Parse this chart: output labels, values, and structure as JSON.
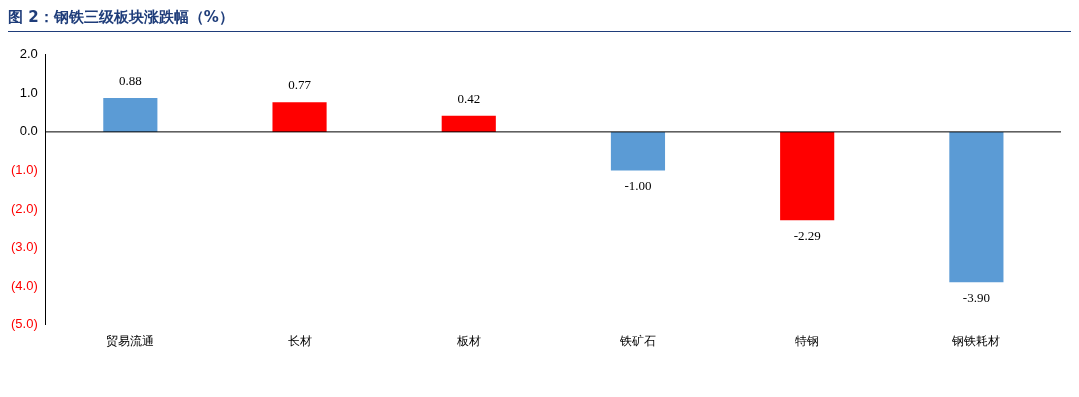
{
  "chart_data": {
    "type": "bar",
    "title": "图 2：钢铁三级板块涨跌幅（%）",
    "categories": [
      "贸易流通",
      "长材",
      "板材",
      "铁矿石",
      "特钢",
      "钢铁耗材"
    ],
    "values": [
      0.88,
      0.77,
      0.42,
      -1.0,
      -2.29,
      -3.9
    ],
    "colors": [
      "#5b9bd5",
      "#ff0000",
      "#ff0000",
      "#5b9bd5",
      "#ff0000",
      "#5b9bd5"
    ],
    "value_labels": [
      "0.88",
      "0.77",
      "0.42",
      "-1.00",
      "-2.29",
      "-3.90"
    ],
    "ylim": [
      -5,
      2
    ],
    "yticks": [
      {
        "value": 2,
        "label": "2.0"
      },
      {
        "value": 1,
        "label": "1.0"
      },
      {
        "value": 0,
        "label": "0.0"
      },
      {
        "value": -1,
        "label": "(1.0)"
      },
      {
        "value": -2,
        "label": "(2.0)"
      },
      {
        "value": -3,
        "label": "(3.0)"
      },
      {
        "value": -4,
        "label": "(4.0)"
      },
      {
        "value": -5,
        "label": "(5.0)"
      }
    ],
    "legend": false
  }
}
